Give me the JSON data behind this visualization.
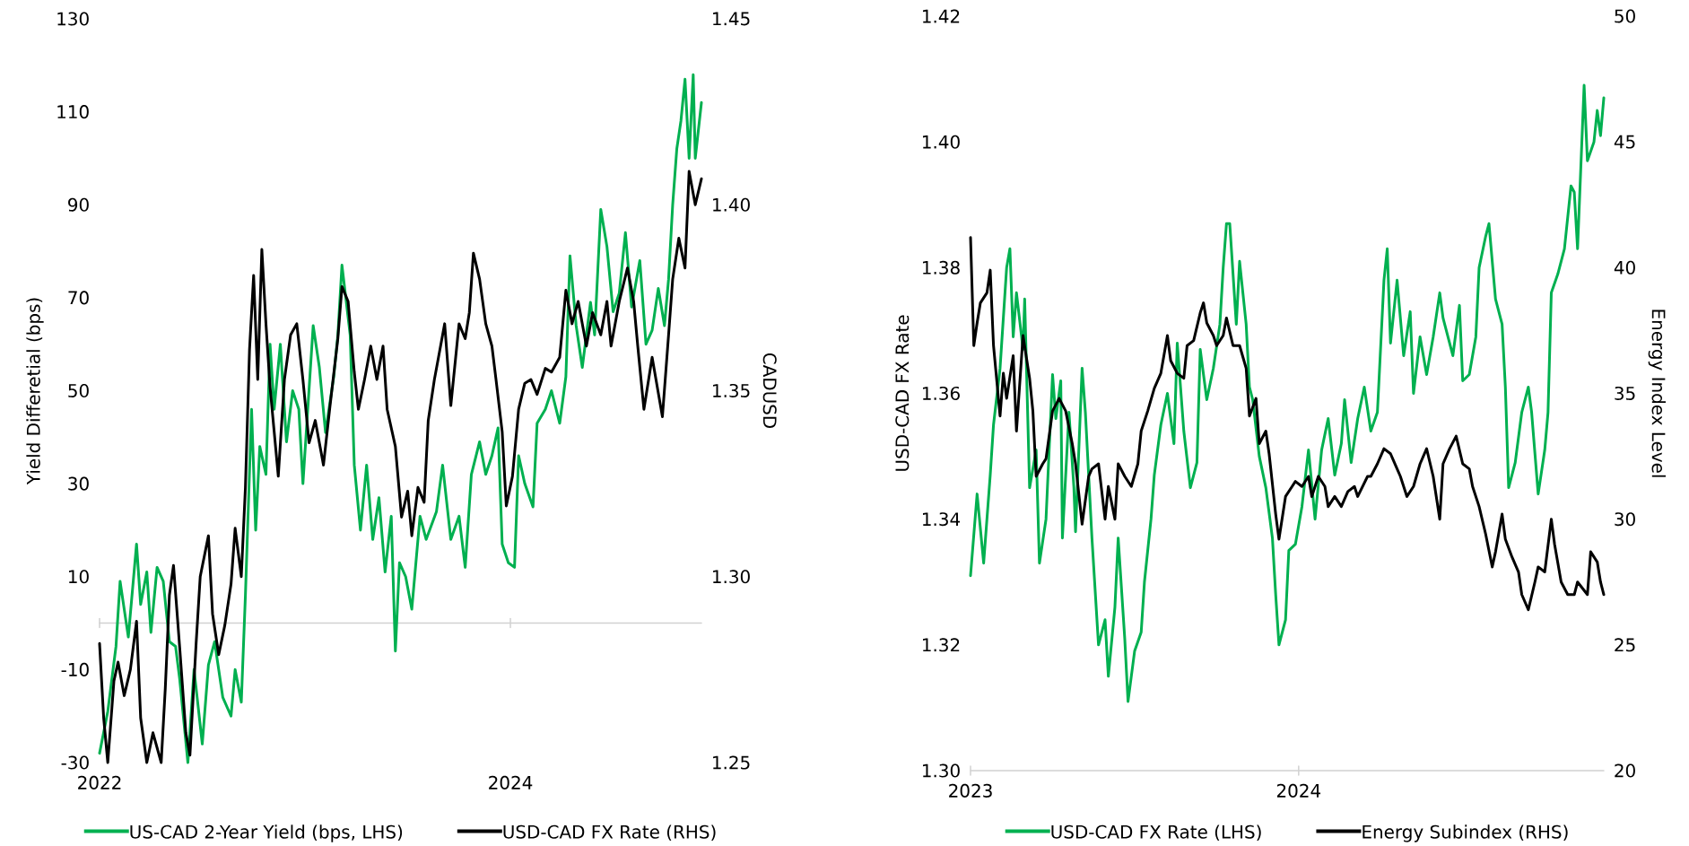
{
  "chart_data": [
    {
      "type": "line",
      "ylabel": "Yield Differetial (bps)",
      "y2label": "CADUSD",
      "legend": "bottom",
      "xlim": [
        2022,
        2024.93
      ],
      "xticks": [
        2022,
        2024
      ],
      "ylim": [
        -30,
        130
      ],
      "yticks": [
        -30,
        -10,
        10,
        30,
        50,
        70,
        90,
        110,
        130
      ],
      "y2lim": [
        1.25,
        1.45
      ],
      "y2ticks": [
        1.25,
        {
          "value": 1.3,
          "label": "1.30"
        },
        1.35,
        {
          "value": 1.4,
          "label": "1.40"
        },
        1.45
      ],
      "series": [
        {
          "name": "US-CAD 2-Year Yield (bps, LHS)",
          "color": "#00b050",
          "x": [
            2022.0,
            2022.04,
            2022.08,
            2022.1,
            2022.14,
            2022.18,
            2022.2,
            2022.23,
            2022.25,
            2022.28,
            2022.31,
            2022.34,
            2022.37,
            2022.39,
            2022.43,
            2022.46,
            2022.5,
            2022.53,
            2022.56,
            2022.6,
            2022.64,
            2022.66,
            2022.69,
            2022.71,
            2022.74,
            2022.76,
            2022.78,
            2022.81,
            2022.83,
            2022.85,
            2022.88,
            2022.91,
            2022.94,
            2022.97,
            2022.99,
            2023.04,
            2023.07,
            2023.1,
            2023.14,
            2023.16,
            2023.18,
            2023.22,
            2023.24,
            2023.27,
            2023.3,
            2023.33,
            2023.36,
            2023.39,
            2023.42,
            2023.44,
            2023.46,
            2023.49,
            2023.52,
            2023.56,
            2023.59,
            2023.64,
            2023.67,
            2023.71,
            2023.75,
            2023.78,
            2023.81,
            2023.85,
            2023.88,
            2023.91,
            2023.94,
            2023.96,
            2023.99,
            2024.02,
            2024.04,
            2024.07,
            2024.11,
            2024.13,
            2024.17,
            2024.2,
            2024.24,
            2024.27,
            2024.29,
            2024.32,
            2024.35,
            2024.39,
            2024.41,
            2024.44,
            2024.47,
            2024.5,
            2024.53,
            2024.56,
            2024.59,
            2024.63,
            2024.66,
            2024.69,
            2024.72,
            2024.75,
            2024.77,
            2024.79,
            2024.81,
            2024.83,
            2024.85,
            2024.87,
            2024.89,
            2024.9,
            2024.93
          ],
          "values": [
            -28,
            -19,
            -5,
            9,
            -3,
            17,
            4,
            11,
            -2,
            12,
            9,
            -4,
            -5,
            -12,
            -30,
            -10,
            -26,
            -9,
            -4,
            -16,
            -20,
            -10,
            -17,
            6,
            46,
            20,
            38,
            32,
            60,
            46,
            60,
            39,
            50,
            46,
            30,
            64,
            55,
            41,
            53,
            62,
            77,
            62,
            34,
            20,
            34,
            18,
            27,
            11,
            23,
            -6,
            13,
            10,
            3,
            23,
            18,
            24,
            34,
            18,
            23,
            12,
            32,
            39,
            32,
            36,
            42,
            17,
            13,
            12,
            36,
            30,
            25,
            43,
            46,
            50,
            43,
            53,
            79,
            64,
            55,
            69,
            62,
            89,
            81,
            67,
            71,
            84,
            68,
            78,
            60,
            63,
            72,
            64,
            74,
            90,
            102,
            108,
            117,
            100,
            118,
            100,
            112
          ]
        },
        {
          "name": "USD-CAD FX Rate (RHS)",
          "color": "#000000",
          "axis": "y2",
          "x": [
            2022.0,
            2022.02,
            2022.04,
            2022.07,
            2022.09,
            2022.12,
            2022.15,
            2022.18,
            2022.2,
            2022.23,
            2022.26,
            2022.3,
            2022.32,
            2022.34,
            2022.36,
            2022.39,
            2022.42,
            2022.44,
            2022.47,
            2022.49,
            2022.53,
            2022.55,
            2022.58,
            2022.61,
            2022.64,
            2022.66,
            2022.69,
            2022.71,
            2022.73,
            2022.75,
            2022.77,
            2022.79,
            2022.81,
            2022.83,
            2022.85,
            2022.87,
            2022.9,
            2022.93,
            2022.96,
            2022.99,
            2023.02,
            2023.05,
            2023.09,
            2023.12,
            2023.16,
            2023.18,
            2023.21,
            2023.24,
            2023.26,
            2023.29,
            2023.32,
            2023.35,
            2023.38,
            2023.4,
            2023.44,
            2023.47,
            2023.5,
            2023.52,
            2023.55,
            2023.58,
            2023.6,
            2023.63,
            2023.65,
            2023.68,
            2023.71,
            2023.75,
            2023.78,
            2023.8,
            2023.82,
            2023.85,
            2023.88,
            2023.91,
            2023.93,
            2023.96,
            2023.98,
            2024.01,
            2024.04,
            2024.07,
            2024.1,
            2024.13,
            2024.17,
            2024.2,
            2024.24,
            2024.27,
            2024.3,
            2024.33,
            2024.37,
            2024.4,
            2024.44,
            2024.47,
            2024.49,
            2024.53,
            2024.57,
            2024.6,
            2024.62,
            2024.65,
            2024.69,
            2024.74,
            2024.77,
            2024.79,
            2024.82,
            2024.85,
            2024.87,
            2024.9,
            2024.93
          ],
          "values": [
            1.282,
            1.262,
            1.25,
            1.272,
            1.277,
            1.268,
            1.275,
            1.288,
            1.262,
            1.25,
            1.258,
            1.25,
            1.27,
            1.295,
            1.303,
            1.281,
            1.258,
            1.252,
            1.282,
            1.3,
            1.311,
            1.29,
            1.279,
            1.287,
            1.298,
            1.313,
            1.3,
            1.324,
            1.361,
            1.381,
            1.353,
            1.388,
            1.368,
            1.351,
            1.339,
            1.327,
            1.353,
            1.365,
            1.368,
            1.353,
            1.336,
            1.342,
            1.33,
            1.345,
            1.364,
            1.378,
            1.374,
            1.355,
            1.345,
            1.353,
            1.362,
            1.353,
            1.362,
            1.345,
            1.335,
            1.316,
            1.323,
            1.311,
            1.324,
            1.32,
            1.342,
            1.353,
            1.359,
            1.368,
            1.346,
            1.368,
            1.364,
            1.371,
            1.387,
            1.38,
            1.368,
            1.362,
            1.353,
            1.339,
            1.319,
            1.327,
            1.345,
            1.352,
            1.353,
            1.349,
            1.356,
            1.355,
            1.359,
            1.377,
            1.368,
            1.374,
            1.362,
            1.371,
            1.365,
            1.374,
            1.362,
            1.374,
            1.383,
            1.374,
            1.362,
            1.345,
            1.359,
            1.343,
            1.365,
            1.38,
            1.391,
            1.383,
            1.409,
            1.4,
            1.407
          ]
        }
      ]
    },
    {
      "type": "line",
      "ylabel": "USD-CAD FX Rate",
      "y2label": "Energy Index Level",
      "legend": "bottom",
      "xlim": [
        2023,
        2024.93
      ],
      "xticks": [
        2023,
        2024
      ],
      "ylim": [
        1.3,
        1.42
      ],
      "yticks": [
        {
          "value": 1.3,
          "label": "1.30"
        },
        1.32,
        1.34,
        1.36,
        1.38,
        {
          "value": 1.4,
          "label": "1.40"
        },
        1.42
      ],
      "y2lim": [
        20,
        50
      ],
      "y2ticks": [
        20,
        25,
        30,
        35,
        40,
        45,
        50
      ],
      "series": [
        {
          "name": "USD-CAD FX Rate (LHS)",
          "color": "#00b050",
          "x": [
            2023.0,
            2023.02,
            2023.04,
            2023.06,
            2023.07,
            2023.09,
            2023.11,
            2023.12,
            2023.13,
            2023.14,
            2023.16,
            2023.165,
            2023.18,
            2023.2,
            2023.21,
            2023.23,
            2023.25,
            2023.26,
            2023.275,
            2023.28,
            2023.3,
            2023.315,
            2023.32,
            2023.34,
            2023.35,
            2023.37,
            2023.39,
            2023.41,
            2023.42,
            2023.44,
            2023.45,
            2023.47,
            2023.48,
            2023.5,
            2023.52,
            2023.53,
            2023.55,
            2023.56,
            2023.58,
            2023.6,
            2023.62,
            2023.63,
            2023.65,
            2023.67,
            2023.69,
            2023.7,
            2023.72,
            2023.74,
            2023.76,
            2023.77,
            2023.78,
            2023.79,
            2023.81,
            2023.82,
            2023.84,
            2023.85,
            2023.86,
            2023.88,
            2023.9,
            2023.92,
            2023.93,
            2023.94,
            2023.96,
            2023.97,
            2023.99,
            2024.01,
            2024.03,
            2024.05,
            2024.07,
            2024.09,
            2024.11,
            2024.13,
            2024.14,
            2024.16,
            2024.18,
            2024.2,
            2024.22,
            2024.24,
            2024.26,
            2024.27,
            2024.28,
            2024.3,
            2024.32,
            2024.34,
            2024.35,
            2024.37,
            2024.39,
            2024.41,
            2024.43,
            2024.44,
            2024.47,
            2024.49,
            2024.5,
            2024.52,
            2024.54,
            2024.55,
            2024.57,
            2024.58,
            2024.6,
            2024.62,
            2024.63,
            2024.64,
            2024.66,
            2024.68,
            2024.7,
            2024.71,
            2024.73,
            2024.75,
            2024.76,
            2024.77,
            2024.79,
            2024.81,
            2024.83,
            2024.84,
            2024.85,
            2024.87,
            2024.88,
            2024.9,
            2024.91,
            2024.92,
            2024.93
          ],
          "values": [
            1.331,
            1.344,
            1.333,
            1.347,
            1.355,
            1.364,
            1.38,
            1.383,
            1.369,
            1.376,
            1.367,
            1.375,
            1.345,
            1.351,
            1.333,
            1.34,
            1.363,
            1.356,
            1.362,
            1.337,
            1.357,
            1.345,
            1.338,
            1.364,
            1.357,
            1.337,
            1.32,
            1.324,
            1.315,
            1.326,
            1.337,
            1.321,
            1.311,
            1.319,
            1.322,
            1.33,
            1.34,
            1.347,
            1.355,
            1.36,
            1.352,
            1.368,
            1.354,
            1.345,
            1.349,
            1.367,
            1.359,
            1.364,
            1.371,
            1.38,
            1.387,
            1.387,
            1.371,
            1.381,
            1.371,
            1.361,
            1.359,
            1.35,
            1.345,
            1.337,
            1.328,
            1.32,
            1.324,
            1.335,
            1.336,
            1.342,
            1.351,
            1.34,
            1.351,
            1.356,
            1.347,
            1.352,
            1.359,
            1.349,
            1.356,
            1.361,
            1.354,
            1.357,
            1.378,
            1.383,
            1.368,
            1.378,
            1.366,
            1.373,
            1.36,
            1.369,
            1.363,
            1.369,
            1.376,
            1.372,
            1.366,
            1.374,
            1.362,
            1.363,
            1.369,
            1.38,
            1.385,
            1.387,
            1.375,
            1.371,
            1.361,
            1.345,
            1.349,
            1.357,
            1.361,
            1.357,
            1.344,
            1.351,
            1.357,
            1.376,
            1.379,
            1.383,
            1.393,
            1.392,
            1.383,
            1.409,
            1.397,
            1.4,
            1.405,
            1.401,
            1.407
          ]
        },
        {
          "name": "Energy Subindex (RHS)",
          "color": "#000000",
          "axis": "y2",
          "x": [
            2023.0,
            2023.01,
            2023.02,
            2023.03,
            2023.05,
            2023.06,
            2023.07,
            2023.09,
            2023.1,
            2023.11,
            2023.13,
            2023.14,
            2023.16,
            2023.18,
            2023.19,
            2023.2,
            2023.22,
            2023.23,
            2023.25,
            2023.27,
            2023.29,
            2023.31,
            2023.32,
            2023.34,
            2023.36,
            2023.37,
            2023.39,
            2023.41,
            2023.42,
            2023.44,
            2023.45,
            2023.47,
            2023.49,
            2023.51,
            2023.52,
            2023.54,
            2023.56,
            2023.58,
            2023.6,
            2023.61,
            2023.63,
            2023.65,
            2023.66,
            2023.68,
            2023.7,
            2023.71,
            2023.72,
            2023.74,
            2023.75,
            2023.77,
            2023.78,
            2023.8,
            2023.82,
            2023.84,
            2023.85,
            2023.87,
            2023.88,
            2023.9,
            2023.91,
            2023.93,
            2023.94,
            2023.96,
            2023.98,
            2023.99,
            2024.01,
            2024.03,
            2024.04,
            2024.06,
            2024.08,
            2024.09,
            2024.11,
            2024.13,
            2024.15,
            2024.17,
            2024.18,
            2024.21,
            2024.22,
            2024.24,
            2024.26,
            2024.28,
            2024.3,
            2024.31,
            2024.33,
            2024.35,
            2024.37,
            2024.39,
            2024.41,
            2024.43,
            2024.44,
            2024.46,
            2024.48,
            2024.5,
            2024.52,
            2024.53,
            2024.55,
            2024.57,
            2024.59,
            2024.6,
            2024.62,
            2024.63,
            2024.65,
            2024.67,
            2024.68,
            2024.7,
            2024.72,
            2024.73,
            2024.75,
            2024.77,
            2024.78,
            2024.8,
            2024.82,
            2024.84,
            2024.85,
            2024.88,
            2024.89,
            2024.91,
            2024.92,
            2024.93
          ],
          "values": [
            41.2,
            36.9,
            37.8,
            38.6,
            39.0,
            39.9,
            36.9,
            34.1,
            35.8,
            34.8,
            36.5,
            33.5,
            37.3,
            35.6,
            34.3,
            31.7,
            32.2,
            32.4,
            34.3,
            34.8,
            34.3,
            33.0,
            32.2,
            29.8,
            31.7,
            32.0,
            32.2,
            30.0,
            31.3,
            30.0,
            32.2,
            31.7,
            31.3,
            32.2,
            33.5,
            34.3,
            35.2,
            35.8,
            37.3,
            36.3,
            35.8,
            35.6,
            36.9,
            37.1,
            38.2,
            38.6,
            37.8,
            37.3,
            36.9,
            37.3,
            38.0,
            36.9,
            36.9,
            36.0,
            34.1,
            34.8,
            33.0,
            33.5,
            32.6,
            30.2,
            29.2,
            30.9,
            31.3,
            31.5,
            31.3,
            31.7,
            30.9,
            31.7,
            31.3,
            30.5,
            30.9,
            30.5,
            31.1,
            31.3,
            30.9,
            31.7,
            31.7,
            32.2,
            32.8,
            32.6,
            32.0,
            31.7,
            30.9,
            31.3,
            32.2,
            32.8,
            31.7,
            30.0,
            32.2,
            32.8,
            33.3,
            32.2,
            32.0,
            31.3,
            30.5,
            29.4,
            28.1,
            28.7,
            30.2,
            29.2,
            28.5,
            27.9,
            27.0,
            26.4,
            27.5,
            28.1,
            27.9,
            30.0,
            29.0,
            27.5,
            27.0,
            27.0,
            27.5,
            27.0,
            28.7,
            28.3,
            27.5,
            27.0
          ]
        }
      ]
    }
  ]
}
